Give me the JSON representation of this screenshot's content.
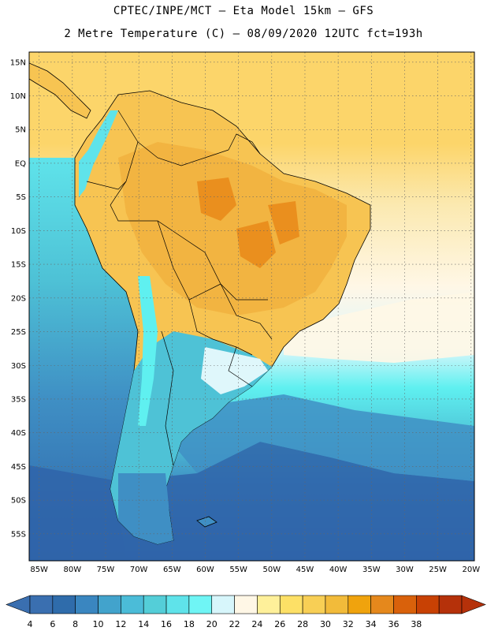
{
  "header": {
    "title_line1": "CPTEC/INPE/MCT –  Eta Model 15km – GFS",
    "title_line2": "2 Metre Temperature (C) – 08/09/2020 12UTC fct=193h"
  },
  "axes": {
    "lat_labels": [
      "15N",
      "10N",
      "5N",
      "EQ",
      "5S",
      "10S",
      "15S",
      "20S",
      "25S",
      "30S",
      "35S",
      "40S",
      "45S",
      "50S",
      "55S"
    ],
    "lat_values": [
      15,
      10,
      5,
      0,
      -5,
      -10,
      -15,
      -20,
      -25,
      -30,
      -35,
      -40,
      -45,
      -50,
      -55
    ],
    "lon_labels": [
      "85W",
      "80W",
      "75W",
      "70W",
      "65W",
      "60W",
      "55W",
      "50W",
      "45W",
      "40W",
      "35W",
      "30W",
      "25W",
      "20W"
    ],
    "lon_values": [
      -85,
      -80,
      -75,
      -70,
      -65,
      -60,
      -55,
      -50,
      -45,
      -40,
      -35,
      -30,
      -25,
      -20
    ]
  },
  "colorbar": {
    "labels": [
      "4",
      "6",
      "8",
      "10",
      "12",
      "14",
      "16",
      "18",
      "20",
      "22",
      "24",
      "26",
      "28",
      "30",
      "32",
      "34",
      "36",
      "38"
    ],
    "colors": [
      "#3a6fb0",
      "#2f6cab",
      "#3a86c0",
      "#42a3cc",
      "#4bbcd8",
      "#54ced8",
      "#5fe3ea",
      "#6ff5f5",
      "#d7f6fb",
      "#fff7e6",
      "#fef09a",
      "#fde066",
      "#f8cf55",
      "#f2bb3a",
      "#f0a30d",
      "#e5881c",
      "#d9610b",
      "#c84104",
      "#b5310a"
    ],
    "low_color": "#3a6fb0",
    "high_color": "#b5310a"
  },
  "colors": {
    "ocean_deep": "#2f64a9",
    "ocean_mid": "#3f8fc4",
    "ocean_cool": "#4ec2d6",
    "ocean_cyan": "#5ff0f0",
    "ocean_pale": "#dff7fb",
    "ocean_warm": "#fbe9b0",
    "warm_yellow": "#fcd56a",
    "amazon_orange": "#f2b441",
    "hot_orange": "#ea8f1e"
  }
}
